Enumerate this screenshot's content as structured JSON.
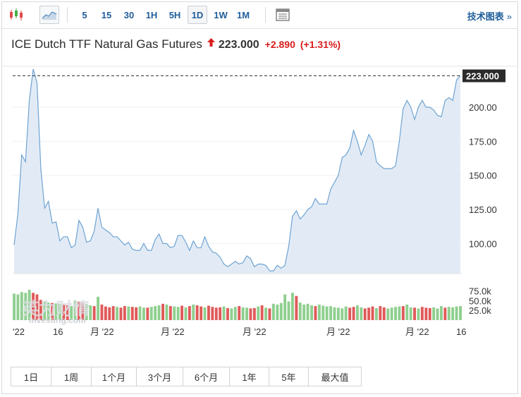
{
  "toolbar": {
    "icons": [
      "candlestick-chart-icon",
      "area-chart-icon",
      "table-view-icon"
    ],
    "timeframes": [
      "5",
      "15",
      "30",
      "1H",
      "5H",
      "1D",
      "1W",
      "1M"
    ],
    "active_timeframe": "1D",
    "tech_chart_label": "技术图表",
    "tech_chart_arrow": "»"
  },
  "header": {
    "name": "ICE Dutch TTF Natural Gas Futures",
    "price": "223.000",
    "change": "+2.890",
    "change_pct": "(+1.31%)",
    "change_color": "#d91c1c"
  },
  "watermark": {
    "cn": "英为财情",
    "en": "Investing.com"
  },
  "chart_data": {
    "type": "area",
    "last_price_label": "223.000",
    "y_ticks": [
      100,
      125,
      150,
      175,
      200
    ],
    "y_tick_labels": [
      "100.00",
      "125.00",
      "150.00",
      "175.00",
      "200.00"
    ],
    "ylim": [
      78,
      230
    ],
    "x_tick_labels": [
      "'22",
      "16",
      "月 '22",
      "月 '22",
      "月 '22",
      "月 '22",
      "月 '22",
      "16"
    ],
    "values": [
      99,
      122,
      165,
      160,
      205,
      228,
      218,
      155,
      126,
      131,
      115,
      116,
      102,
      105,
      105,
      97,
      99,
      117,
      112,
      101,
      102,
      109,
      126,
      112,
      110,
      108,
      105,
      105,
      102,
      99,
      101,
      96,
      95,
      95,
      100,
      95,
      95,
      103,
      107,
      100,
      100,
      97,
      98,
      106,
      106,
      101,
      95,
      102,
      97,
      97,
      105,
      98,
      94,
      93,
      90,
      85,
      83,
      85,
      87,
      85,
      86,
      91,
      89,
      83,
      85,
      85,
      84,
      80,
      80,
      84,
      82,
      84,
      98,
      120,
      124,
      118,
      121,
      125,
      127,
      133,
      129,
      129,
      129,
      140,
      145,
      150,
      163,
      165,
      170,
      183,
      175,
      165,
      172,
      180,
      175,
      160,
      157,
      155,
      155,
      155,
      157,
      175,
      199,
      205,
      200,
      191,
      200,
      205,
      200,
      200,
      198,
      194,
      193,
      205,
      207,
      205,
      220,
      223
    ],
    "volume": {
      "y_tick_labels": [
        "75.0k",
        "50.0k",
        "25.0k"
      ],
      "ylim": [
        0,
        85
      ],
      "values": [
        68,
        66,
        72,
        70,
        78,
        70,
        66,
        52,
        48,
        45,
        44,
        43,
        42,
        40,
        38,
        36,
        50,
        48,
        44,
        40,
        38,
        36,
        60,
        40,
        35,
        33,
        36,
        34,
        32,
        36,
        35,
        34,
        33,
        35,
        32,
        32,
        34,
        36,
        38,
        42,
        40,
        36,
        35,
        34,
        37,
        33,
        36,
        40,
        38,
        35,
        33,
        37,
        34,
        32,
        33,
        35,
        31,
        30,
        34,
        36,
        33,
        32,
        30,
        31,
        35,
        38,
        32,
        30,
        42,
        40,
        44,
        66,
        48,
        70,
        62,
        45,
        40,
        42,
        38,
        36,
        40,
        37,
        35,
        36,
        33,
        32,
        30,
        35,
        32,
        34,
        38,
        33,
        30,
        32,
        35,
        31,
        36,
        33,
        30,
        32,
        34,
        35,
        36,
        40,
        33,
        32,
        30,
        34,
        32,
        31,
        33,
        30,
        36,
        32,
        34,
        33,
        35,
        36
      ],
      "up": [
        1,
        1,
        1,
        1,
        1,
        0,
        0,
        0,
        1,
        1,
        0,
        1,
        1,
        0,
        0,
        1,
        1,
        0,
        0,
        1,
        1,
        0,
        1,
        0,
        0,
        0,
        0,
        1,
        0,
        0,
        1,
        0,
        0,
        1,
        1,
        0,
        1,
        1,
        1,
        0,
        1,
        0,
        1,
        1,
        0,
        1,
        0,
        1,
        0,
        0,
        1,
        0,
        0,
        0,
        0,
        1,
        0,
        1,
        1,
        0,
        1,
        1,
        0,
        0,
        1,
        0,
        1,
        0,
        1,
        1,
        1,
        1,
        1,
        1,
        0,
        1,
        1,
        1,
        1,
        0,
        1,
        1,
        1,
        1,
        1,
        1,
        1,
        1,
        0,
        0,
        1,
        1,
        0,
        0,
        0,
        1,
        0,
        0,
        1,
        1,
        1,
        1,
        0,
        1,
        1,
        0,
        1,
        0,
        0,
        0,
        1,
        1,
        1,
        0,
        1,
        1,
        1,
        1
      ],
      "up_color": "#8fcf8f",
      "down_color": "#e05a5a"
    }
  },
  "ranges": [
    "1日",
    "1周",
    "1个月",
    "3个月",
    "6个月",
    "1年",
    "5年",
    "最大值"
  ]
}
